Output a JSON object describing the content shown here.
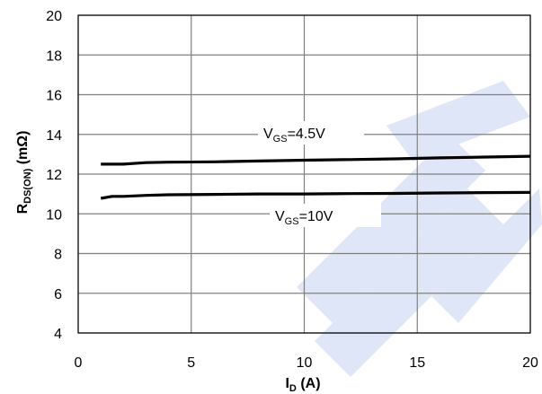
{
  "chart_data": {
    "type": "line",
    "xlabel": {
      "main": "I",
      "sub": "D",
      "unit": " (A)"
    },
    "ylabel": {
      "main": "R",
      "sub": "DS(ON)",
      "unit": " (mΩ)"
    },
    "xlim": [
      0,
      20
    ],
    "ylim": [
      4,
      20
    ],
    "xticks": [
      0,
      5,
      10,
      15,
      20
    ],
    "yticks": [
      4,
      6,
      8,
      10,
      12,
      14,
      16,
      18,
      20
    ],
    "grid": true,
    "series": [
      {
        "name": {
          "main": "V",
          "sub": "GS",
          "rest": "=4.5V"
        },
        "x": [
          1,
          2,
          3,
          4,
          6,
          8,
          10,
          12,
          14,
          16,
          18,
          20
        ],
        "y": [
          12.5,
          12.5,
          12.58,
          12.6,
          12.62,
          12.66,
          12.7,
          12.73,
          12.77,
          12.82,
          12.86,
          12.9
        ]
      },
      {
        "name": {
          "main": "V",
          "sub": "GS",
          "rest": "=10V"
        },
        "x": [
          1,
          1.5,
          2,
          3,
          4,
          6,
          8,
          10,
          12,
          14,
          16,
          18,
          20
        ],
        "y": [
          10.78,
          10.88,
          10.88,
          10.93,
          10.96,
          10.98,
          11.0,
          11.0,
          11.02,
          11.03,
          11.05,
          11.07,
          11.08
        ]
      }
    ]
  }
}
